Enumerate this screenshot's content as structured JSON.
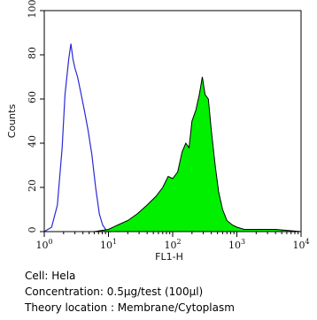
{
  "chart_data": {
    "type": "area",
    "xlabel": "FL1-H",
    "ylabel": "Counts",
    "x_scale": "log",
    "xlim": [
      1,
      10000
    ],
    "ylim": [
      0,
      100
    ],
    "x_ticks": [
      {
        "value": 1,
        "base": "10",
        "exp": "0"
      },
      {
        "value": 10,
        "base": "10",
        "exp": "1"
      },
      {
        "value": 100,
        "base": "10",
        "exp": "2"
      },
      {
        "value": 1000,
        "base": "10",
        "exp": "3"
      },
      {
        "value": 10000,
        "base": "10",
        "exp": "4"
      }
    ],
    "y_ticks": [
      "0",
      "20",
      "40",
      "60",
      "80",
      "100"
    ],
    "series": [
      {
        "style": "outline",
        "color": "#2a2ad6",
        "x": [
          1.0,
          1.3,
          1.6,
          1.9,
          2.1,
          2.4,
          2.6,
          2.8,
          3.0,
          3.3,
          3.7,
          4.2,
          4.8,
          5.5,
          6.3,
          7.2,
          8.1,
          9.0,
          10.0,
          11.0
        ],
        "y": [
          0,
          2,
          12,
          38,
          62,
          78,
          85,
          78,
          74,
          70,
          63,
          55,
          46,
          35,
          20,
          8,
          3,
          1,
          0,
          0
        ]
      },
      {
        "style": "filled",
        "color": "#00f000",
        "x": [
          6.0,
          10,
          14,
          20,
          28,
          40,
          55,
          70,
          85,
          100,
          120,
          140,
          160,
          180,
          200,
          230,
          260,
          290,
          320,
          360,
          400,
          460,
          520,
          600,
          700,
          850,
          1000,
          1300,
          2000,
          4000,
          10000
        ],
        "y": [
          0,
          1,
          3,
          5,
          8,
          12,
          16,
          20,
          25,
          24,
          27,
          36,
          40,
          38,
          50,
          55,
          62,
          70,
          62,
          60,
          46,
          30,
          18,
          10,
          5,
          3,
          2,
          1,
          1,
          1,
          0
        ]
      }
    ]
  },
  "info": {
    "cell": "Cell: Hela",
    "concentration": "Concentration: 0.5μg/test (100μl)",
    "location": "Theory location : Membrane/Cytoplasm"
  }
}
